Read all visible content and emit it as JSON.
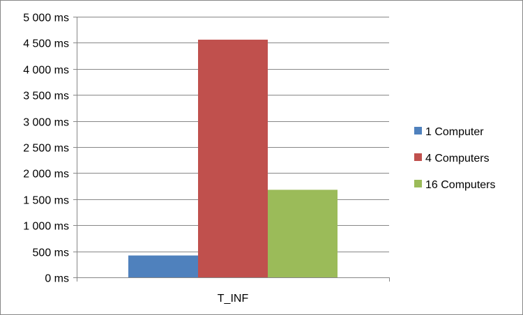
{
  "chart_data": {
    "type": "bar",
    "categories": [
      "T_INF"
    ],
    "series": [
      {
        "name": "1 Computer",
        "values": [
          420
        ],
        "color": "#4F81BD"
      },
      {
        "name": "4 Computers",
        "values": [
          4560
        ],
        "color": "#C0504D"
      },
      {
        "name": "16 Computers",
        "values": [
          1680
        ],
        "color": "#9BBB59"
      }
    ],
    "ylim": [
      0,
      5000
    ],
    "yticks": [
      0,
      500,
      1000,
      1500,
      2000,
      2500,
      3000,
      3500,
      4000,
      4500,
      5000
    ],
    "ytick_labels": [
      "0 ms",
      "500 ms",
      "1 000 ms",
      "1 500 ms",
      "2 000 ms",
      "2 500 ms",
      "3 000 ms",
      "3 500 ms",
      "4 000 ms",
      "4 500 ms",
      "5 000 ms"
    ],
    "title": "",
    "xlabel": "",
    "ylabel": "",
    "grid": true,
    "legend_position": "right",
    "gridline_color": "#868686",
    "axis_color": "#868686"
  }
}
